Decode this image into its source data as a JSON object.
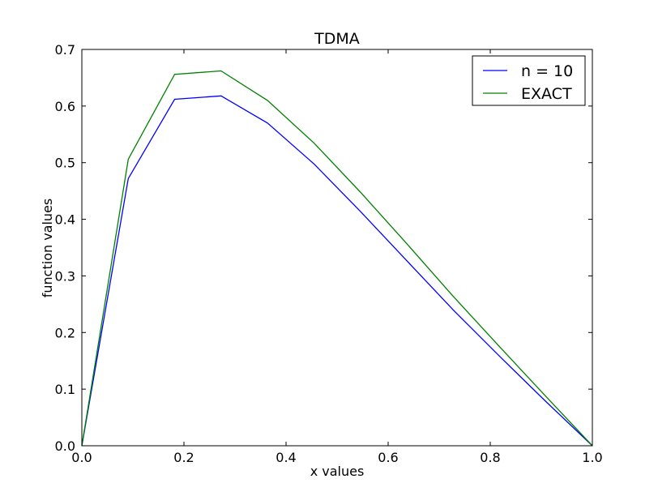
{
  "chart_data": {
    "type": "line",
    "title": "TDMA",
    "xlabel": "x values",
    "ylabel": "function values",
    "xlim": [
      0.0,
      1.0
    ],
    "ylim": [
      0.0,
      0.7
    ],
    "xticks": [
      0.0,
      0.2,
      0.4,
      0.6,
      0.8,
      1.0
    ],
    "xtick_labels": [
      "0.0",
      "0.2",
      "0.4",
      "0.6",
      "0.8",
      "1.0"
    ],
    "yticks": [
      0.0,
      0.1,
      0.2,
      0.3,
      0.4,
      0.5,
      0.6,
      0.7
    ],
    "ytick_labels": [
      "0.0",
      "0.1",
      "0.2",
      "0.3",
      "0.4",
      "0.5",
      "0.6",
      "0.7"
    ],
    "grid": false,
    "legend_position": "top-right",
    "series": [
      {
        "name": "n = 10",
        "color": "#0000ff",
        "x": [
          0.0,
          0.0909,
          0.1818,
          0.2727,
          0.3636,
          0.4545,
          0.5455,
          0.6364,
          0.7273,
          0.8182,
          0.9091,
          1.0
        ],
        "y": [
          0.0,
          0.472,
          0.612,
          0.618,
          0.57,
          0.498,
          0.414,
          0.327,
          0.24,
          0.158,
          0.078,
          0.0
        ]
      },
      {
        "name": "EXACT",
        "color": "#008000",
        "x": [
          0.0,
          0.0909,
          0.1818,
          0.2727,
          0.3636,
          0.4545,
          0.5455,
          0.6364,
          0.7273,
          0.8182,
          0.9091,
          1.0
        ],
        "y": [
          0.0,
          0.506,
          0.656,
          0.662,
          0.61,
          0.535,
          0.448,
          0.357,
          0.264,
          0.175,
          0.087,
          0.0
        ]
      }
    ]
  }
}
